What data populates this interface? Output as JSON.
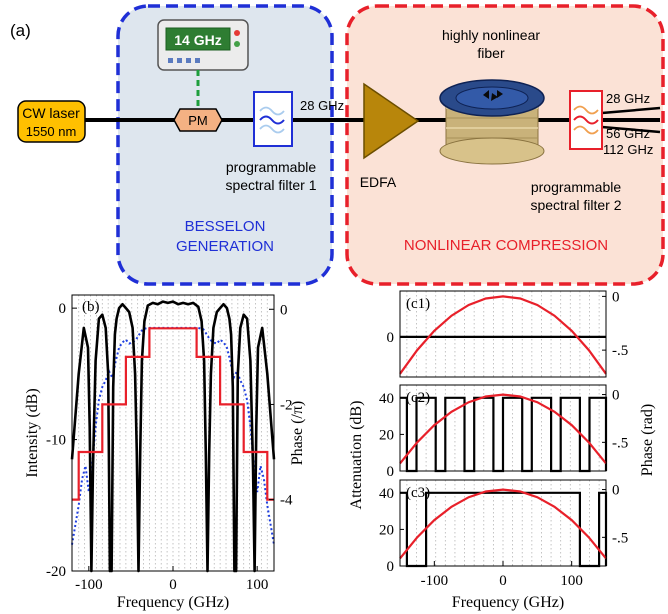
{
  "panel_a": {
    "label": "(a)",
    "source": {
      "line1": "CW laser",
      "line2": "1550 nm"
    },
    "synth_freq": "14 GHz",
    "modulator": "PM",
    "besselon_freq": "28 GHz",
    "filter1": {
      "line1": "programmable",
      "line2": "spectral filter 1"
    },
    "besselon": {
      "line1": "BESSELON",
      "line2": "GENERATION"
    },
    "amplifier": "EDFA",
    "fiber": {
      "line1": "highly nonlinear",
      "line2": "fiber"
    },
    "filter2": {
      "line1": "programmable",
      "line2": "spectral filter 2"
    },
    "outputs": [
      "28 GHz",
      "56 GHz",
      "112 GHz"
    ],
    "compression": "NONLINEAR COMPRESSION",
    "colors": {
      "besselon_box": "#1f2fd6",
      "compression_box": "#e8202a",
      "laser": "#ffc000",
      "amplifier": "#b8860b",
      "modulator": "#f4b183"
    }
  },
  "chart_data": [
    {
      "type": "line",
      "panel": "(b)",
      "xlabel": "Frequency (GHz)",
      "ylabel": "Intensity (dB)",
      "y2label": "Phase (/π)",
      "xlim": [
        -120,
        120
      ],
      "ylim": [
        -20,
        1
      ],
      "y2lim": [
        -5.5,
        0.3
      ],
      "xticks": [
        -100,
        0,
        100
      ],
      "yticks": [
        0,
        -10,
        -20
      ],
      "y2ticks": [
        0,
        -2,
        -4
      ],
      "grid": "vertical dotted lines every 7 GHz",
      "series": [
        {
          "role": "measured intensity (black)",
          "x": [
            -120,
            -112,
            -106,
            -101,
            -99,
            -97,
            -95,
            -92,
            -88,
            -84,
            -80,
            -77,
            -75,
            -73,
            -71,
            -69,
            -67,
            -64,
            -60,
            -56,
            -52,
            -48,
            -45,
            -43,
            -41,
            -39,
            -37,
            -34,
            -30,
            -24,
            -18,
            -12,
            -6,
            0,
            6,
            12,
            18,
            24,
            30,
            34,
            37,
            39,
            41,
            43,
            45,
            48,
            52,
            56,
            60,
            64,
            67,
            69,
            71,
            73,
            75,
            77,
            80,
            84,
            88,
            92,
            95,
            97,
            99,
            101,
            106,
            112,
            120
          ],
          "y": [
            -11.5,
            -5,
            -1.5,
            -3,
            -9,
            -20,
            -12,
            -4,
            -0.8,
            -0.5,
            -1.5,
            -5,
            -20,
            -20,
            -6,
            -2,
            -0.8,
            0,
            0.3,
            0,
            -0.3,
            -1.5,
            -5,
            -11,
            -20,
            -11,
            -4,
            -1,
            0.2,
            0.4,
            0.3,
            0.5,
            0.4,
            0.5,
            0.3,
            0.4,
            0.3,
            0.4,
            0.1,
            -1,
            -4,
            -11,
            -20,
            -11,
            -5,
            -1.5,
            -0.3,
            0,
            0.3,
            0,
            -0.8,
            -2,
            -6,
            -20,
            -20,
            -5,
            -1.5,
            -0.5,
            -0.8,
            -4,
            -12,
            -20,
            -9,
            -3,
            -1.5,
            -5,
            -11.5
          ]
        },
        {
          "role": "ideal spectrum (blue dotted)",
          "x": [
            -120,
            -112,
            -108,
            -104,
            -100,
            -96,
            -92,
            -88,
            -84,
            -80,
            -76,
            -72,
            -68,
            -64,
            -60,
            -56,
            -52,
            -48,
            -44,
            -40,
            -36,
            -30,
            0,
            30,
            36,
            40,
            44,
            48,
            52,
            56,
            60,
            64,
            68,
            72,
            76,
            80,
            84,
            88,
            92,
            96,
            100,
            104,
            108,
            112,
            120
          ],
          "y": [
            -18,
            -15,
            -13,
            -12,
            -14,
            -12,
            -9,
            -7,
            -6,
            -5.5,
            -4.8,
            -5.3,
            -4,
            -3,
            -2.6,
            -2.4,
            -2.7,
            -2.6,
            -2.4,
            -2,
            -1.6,
            -1.5,
            -1.5,
            -1.5,
            -1.6,
            -2,
            -2.4,
            -2.6,
            -2.7,
            -2.4,
            -2.6,
            -3,
            -4,
            -5.3,
            -4.8,
            -5.5,
            -6,
            -7,
            -9,
            -12,
            -14,
            -12,
            -13,
            -15,
            -18
          ]
        },
        {
          "role": "spectral phase (red)",
          "x": [
            -120,
            -112,
            -112,
            -84,
            -84,
            -56,
            -56,
            -28,
            -28,
            28,
            28,
            56,
            56,
            84,
            84,
            112,
            112,
            120
          ],
          "y2": [
            -4,
            -4,
            -3,
            -3,
            -2,
            -2,
            -1,
            -1,
            -0.4,
            -0.4,
            -1,
            -1,
            -2,
            -2,
            -3,
            -3,
            -4,
            -4
          ]
        }
      ]
    },
    {
      "type": "line",
      "panel": "(c1)",
      "xlim": [
        -150,
        150
      ],
      "ylim": [
        -14,
        16
      ],
      "yticks": [
        0
      ],
      "y2lim": [
        -0.75,
        0.05
      ],
      "y2ticks": [
        0,
        -0.5
      ],
      "y2ticklabels": [
        "0",
        "-.5"
      ],
      "series": [
        {
          "role": "attenuation (black)",
          "x": [
            -150,
            150
          ],
          "y": [
            0,
            0
          ]
        },
        {
          "role": "parabolic phase (red)",
          "x": [
            -150,
            -125,
            -100,
            -75,
            -50,
            -25,
            0,
            25,
            50,
            75,
            100,
            125,
            150
          ],
          "y2": [
            -0.72,
            -0.5,
            -0.32,
            -0.18,
            -0.08,
            -0.02,
            0,
            -0.02,
            -0.08,
            -0.18,
            -0.32,
            -0.5,
            -0.72
          ]
        }
      ]
    },
    {
      "type": "line",
      "panel": "(c2)",
      "xlim": [
        -150,
        150
      ],
      "ylim": [
        0,
        47
      ],
      "yticks": [
        0,
        20,
        40
      ],
      "y2lim": [
        -0.8,
        0.1
      ],
      "y2ticks": [
        0,
        -0.5
      ],
      "y2ticklabels": [
        "0",
        "-.5"
      ],
      "series": [
        {
          "role": "attenuation mask (black)",
          "x": [
            -150,
            -140,
            -140,
            -126,
            -126,
            -98,
            -98,
            -84,
            -84,
            -56,
            -56,
            -42,
            -42,
            -14,
            -14,
            0,
            0,
            28,
            28,
            42,
            42,
            70,
            70,
            84,
            84,
            112,
            112,
            126,
            126,
            150,
            150
          ],
          "y": [
            40,
            40,
            0,
            0,
            40,
            40,
            0,
            0,
            40,
            40,
            0,
            0,
            40,
            40,
            0,
            0,
            40,
            40,
            0,
            0,
            40,
            40,
            0,
            0,
            40,
            40,
            0,
            0,
            40,
            40,
            0
          ]
        },
        {
          "role": "parabolic phase (red)",
          "x": [
            -150,
            -125,
            -100,
            -75,
            -50,
            -25,
            0,
            25,
            50,
            75,
            100,
            125,
            150
          ],
          "y2": [
            -0.72,
            -0.5,
            -0.32,
            -0.18,
            -0.08,
            -0.02,
            0,
            -0.02,
            -0.08,
            -0.18,
            -0.32,
            -0.5,
            -0.72
          ]
        }
      ]
    },
    {
      "type": "line",
      "panel": "(c3)",
      "xlabel": "Frequency (GHz)",
      "xlim": [
        -150,
        150
      ],
      "xticks": [
        -100,
        0,
        100
      ],
      "ylim": [
        0,
        47
      ],
      "yticks": [
        0,
        20,
        40
      ],
      "y2lim": [
        -0.8,
        0.1
      ],
      "y2ticks": [
        0,
        -0.5
      ],
      "y2ticklabels": [
        "0",
        "-.5"
      ],
      "series": [
        {
          "role": "attenuation mask (black)",
          "x": [
            -150,
            -140,
            -140,
            -112,
            -112,
            112,
            112,
            140,
            140,
            150,
            150
          ],
          "y": [
            40,
            40,
            0,
            0,
            40,
            40,
            0,
            0,
            40,
            40,
            0
          ]
        },
        {
          "role": "parabolic phase (red)",
          "x": [
            -150,
            -125,
            -100,
            -75,
            -50,
            -25,
            0,
            25,
            50,
            75,
            100,
            125,
            150
          ],
          "y2": [
            -0.72,
            -0.5,
            -0.32,
            -0.18,
            -0.08,
            -0.02,
            0,
            -0.02,
            -0.08,
            -0.18,
            -0.32,
            -0.5,
            -0.72
          ]
        }
      ]
    }
  ],
  "panel_c": {
    "ylabel": "Attenuation (dB)",
    "y2label": "Phase (rad)"
  }
}
